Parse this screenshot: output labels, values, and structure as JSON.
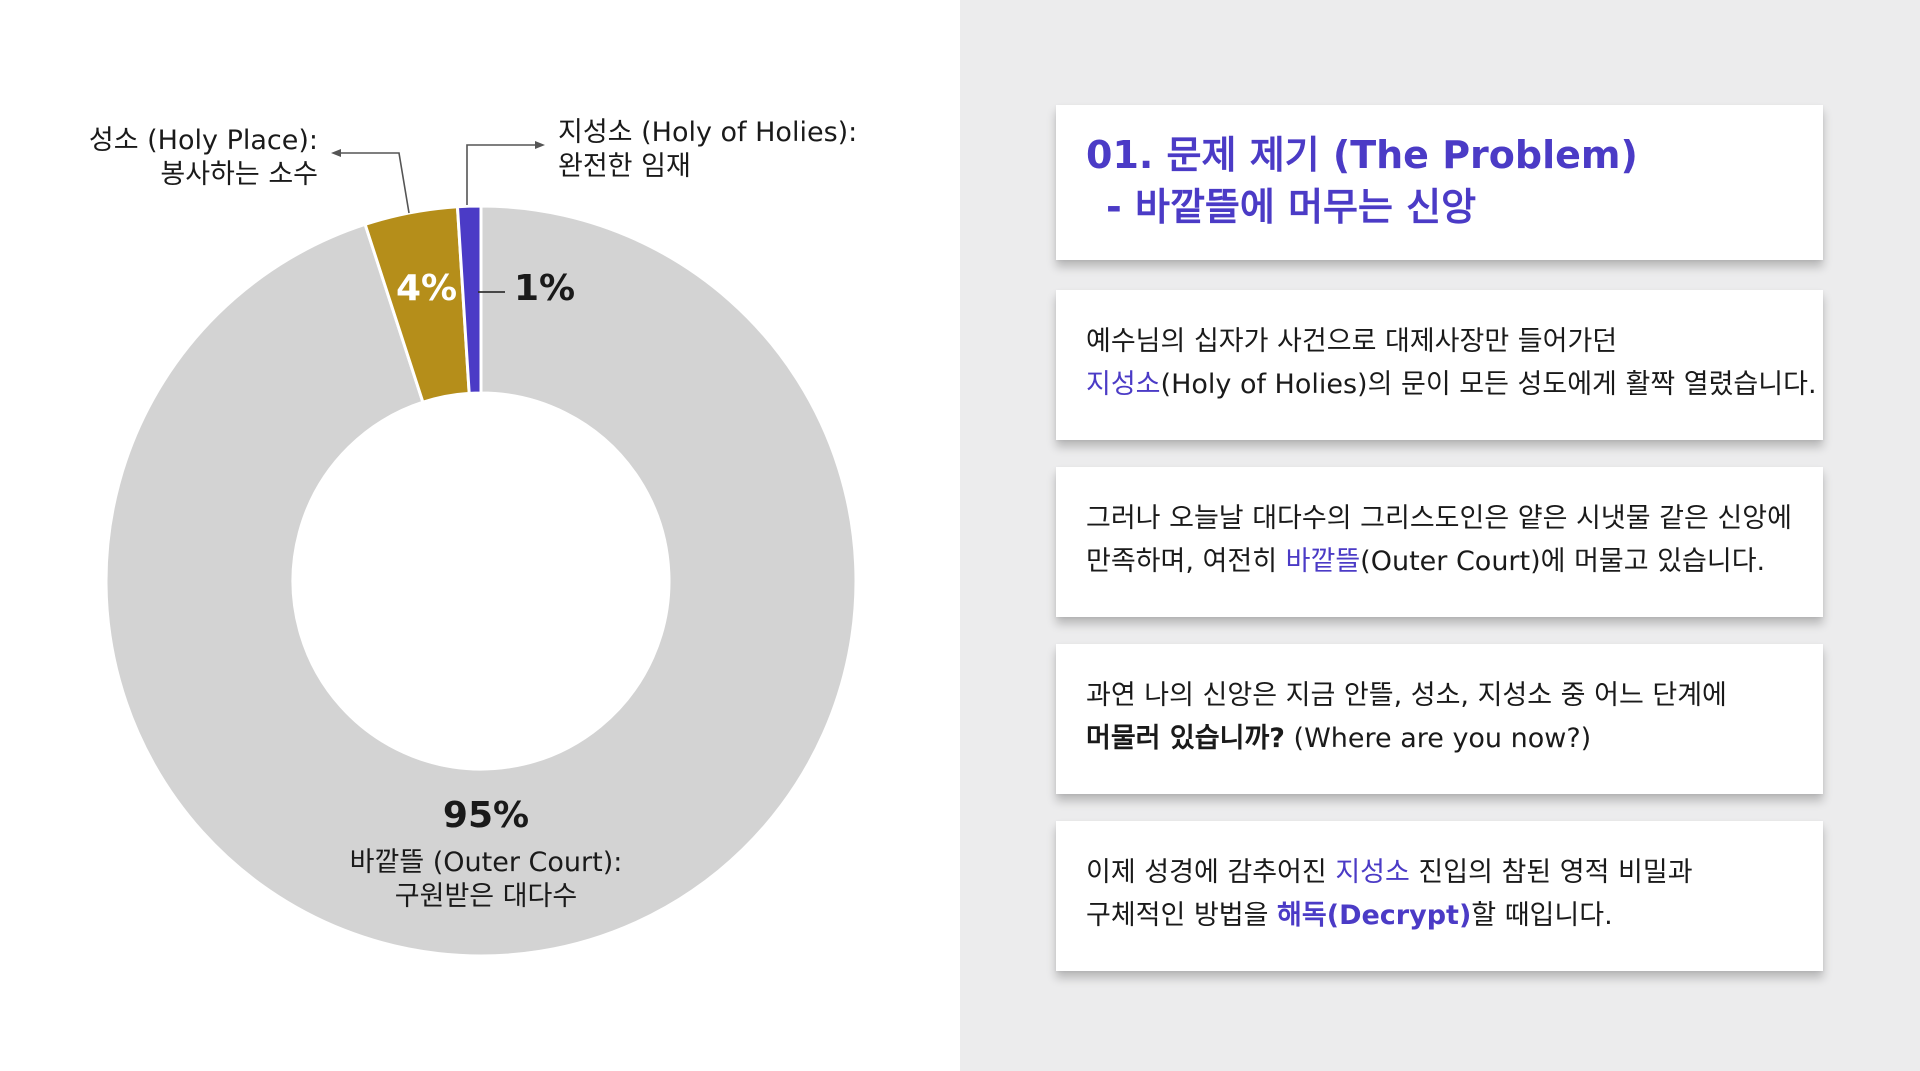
{
  "chart_data": {
    "type": "pie",
    "variant": "donut",
    "slices": [
      {
        "label_line1": "바깥뜰 (Outer Court):",
        "label_line2": "구원받은 대다수",
        "value": 95,
        "value_label": "95%",
        "color": "#d3d3d3"
      },
      {
        "label_line1": "성소 (Holy Place):",
        "label_line2": "봉사하는 소수",
        "value": 4,
        "value_label": "4%",
        "color": "#b58e1a"
      },
      {
        "label_line1": "지성소 (Holy of Holies):",
        "label_line2": "완전한 임재",
        "value": 1,
        "value_label": "1%",
        "color": "#4b3bc6"
      }
    ]
  },
  "panel": {
    "title_line1": "01. 문제 제기 (The Problem)",
    "title_line2": "- 바깥뜰에 머무는 신앙",
    "card1": {
      "line1": "예수님의 십자가 사건으로 대제사장만 들어가던",
      "line2_hl": "지성소",
      "line2_rest": "(Holy of Holies)의 문이 모든 성도에게 활짝 열렸습니다."
    },
    "card2": {
      "line1": "그러나 오늘날 대다수의 그리스도인은 얕은 시냇물 같은 신앙에",
      "line2_pre": "만족하며, 여전히 ",
      "line2_hl": "바깥뜰",
      "line2_post": "(Outer Court)에 머물고 있습니다."
    },
    "card3": {
      "line1": "과연 나의 신앙은 지금 안뜰, 성소, 지성소 중 어느 단계에",
      "line2_bold": "머물러 있습니까?",
      "line2_rest": " (Where are you now?)"
    },
    "card4": {
      "line1_pre": "이제 성경에 감추어진 ",
      "line1_hl": "지성소",
      "line1_post": " 진입의 참된 영적 비밀과",
      "line2_pre": "구체적인 방법을 ",
      "line2_hl": "해독(Decrypt)",
      "line2_post": "할 때입니다."
    }
  }
}
